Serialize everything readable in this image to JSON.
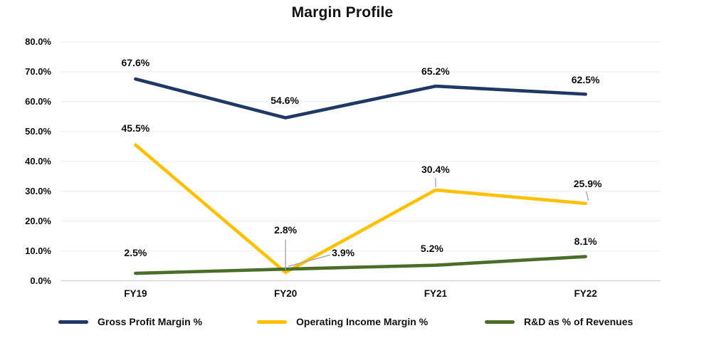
{
  "title": "Margin Profile",
  "chart_data": {
    "type": "line",
    "title": "Margin Profile",
    "categories": [
      "FY19",
      "FY20",
      "FY21",
      "FY22"
    ],
    "y_axis": {
      "min": 0,
      "max": 80,
      "tick_step": 10,
      "tick_labels": [
        "0.0%",
        "10.0%",
        "20.0%",
        "30.0%",
        "40.0%",
        "50.0%",
        "60.0%",
        "70.0%",
        "80.0%"
      ]
    },
    "grid": true,
    "legend_position": "bottom",
    "series": [
      {
        "name": "Gross Profit Margin %",
        "key": "gross-profit-margin",
        "color": "#1f3864",
        "values": [
          67.6,
          54.6,
          65.2,
          62.5
        ],
        "labels": [
          "67.6%",
          "54.6%",
          "65.2%",
          "62.5%"
        ]
      },
      {
        "name": "Operating Income Margin %",
        "key": "operating-income-margin",
        "color": "#ffc000",
        "values": [
          45.5,
          2.8,
          30.4,
          25.9
        ],
        "labels": [
          "45.5%",
          "2.8%",
          "30.4%",
          "25.9%"
        ]
      },
      {
        "name": "R&D as % of Revenues",
        "key": "rd-as-pct-of-revenues",
        "color": "#4a6e28",
        "values": [
          2.5,
          3.9,
          5.2,
          8.1
        ],
        "labels": [
          "2.5%",
          "3.9%",
          "5.2%",
          "8.1%"
        ]
      }
    ]
  },
  "colors": {
    "gridline": "#f0f0f0",
    "axis_line": "#d5d5d5",
    "leader_line": "#a6a6a6"
  }
}
